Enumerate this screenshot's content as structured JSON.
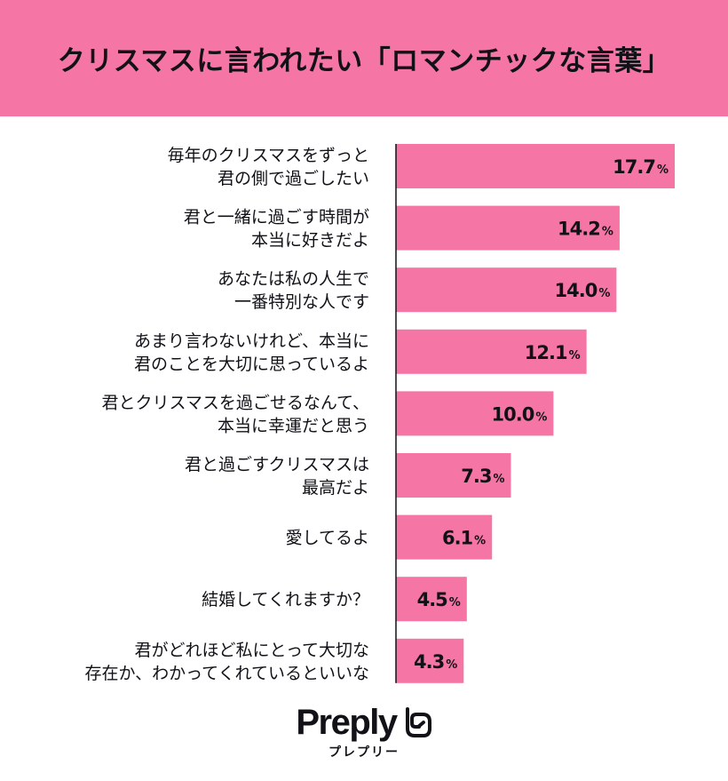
{
  "title": "クリスマスに言われたい「ロマンチックな言葉」",
  "chart_data": {
    "type": "bar",
    "orientation": "horizontal",
    "title": "クリスマスに言われたい「ロマンチックな言葉」",
    "categories": [
      [
        "毎年のクリスマスをずっと",
        "君の側で過ごしたい"
      ],
      [
        "君と一緒に過ごす時間が",
        "本当に好きだよ"
      ],
      [
        "あなたは私の人生で",
        "一番特別な人です"
      ],
      [
        "あまり言わないけれど、本当に",
        "君のことを大切に思っているよ"
      ],
      [
        "君とクリスマスを過ごせるなんて、",
        "本当に幸運だと思う"
      ],
      [
        "君と過ごすクリスマスは",
        "最高だよ"
      ],
      [
        "愛してるよ"
      ],
      [
        "結婚してくれますか？"
      ],
      [
        "君がどれほど私にとって大切な",
        "存在か、わかってくれているといいな"
      ]
    ],
    "values": [
      17.7,
      14.2,
      14.0,
      12.1,
      10.0,
      7.3,
      6.1,
      4.5,
      4.3
    ],
    "value_labels": [
      "17.7",
      "14.2",
      "14.0",
      "12.1",
      "10.0",
      "7.3",
      "6.1",
      "4.5",
      "4.3"
    ],
    "unit": "%",
    "bar_color": "#f576a4",
    "axis_color": "#121117"
  },
  "colors": {
    "header_bg": "#f576a4",
    "text": "#121117"
  },
  "logo": {
    "word": "Preply",
    "sub": "プレプリー",
    "icon": "preply-heart-icon"
  }
}
